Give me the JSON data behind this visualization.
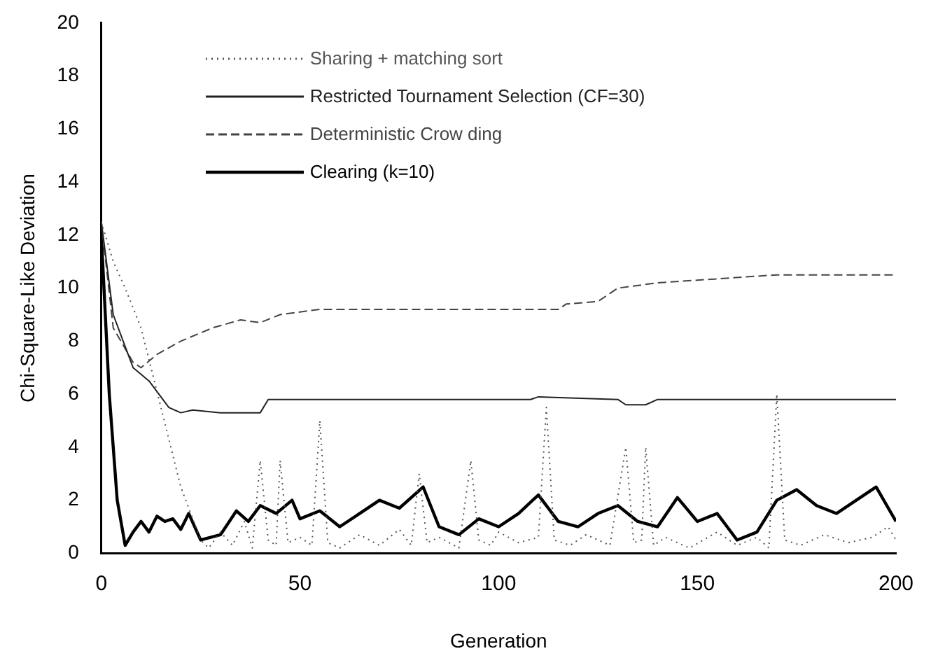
{
  "chart_data": {
    "type": "line",
    "xlabel": "Generation",
    "ylabel": "Chi-Square-Like Deviation",
    "xlim": [
      0,
      200
    ],
    "xticks": [
      0,
      50,
      100,
      150,
      200
    ],
    "ylim": [
      0,
      20
    ],
    "yticks": [
      0,
      2,
      4,
      6,
      8,
      10,
      12,
      14,
      16,
      18,
      20
    ],
    "grid": false,
    "legend": "top left",
    "marker": "none",
    "series": [
      {
        "name": "Sharing + matching sort",
        "color": "#555555",
        "line_style": "dotted",
        "x": [
          0,
          3,
          6,
          10,
          15,
          20,
          25,
          27,
          30,
          33,
          36,
          38,
          40,
          42,
          44,
          45,
          47,
          50,
          53,
          55,
          57,
          60,
          65,
          70,
          75,
          78,
          80,
          82,
          85,
          90,
          93,
          95,
          98,
          100,
          105,
          110,
          112,
          114,
          118,
          122,
          128,
          132,
          134,
          136,
          137,
          139,
          142,
          148,
          155,
          160,
          165,
          168,
          170,
          172,
          176,
          182,
          188,
          194,
          198,
          200
        ],
        "values": [
          12.5,
          11,
          10,
          8.5,
          5.5,
          2.5,
          0.5,
          0.2,
          0.8,
          0.3,
          1.2,
          0.2,
          3.5,
          0.5,
          0.3,
          3.5,
          0.4,
          0.6,
          0.3,
          5,
          0.4,
          0.2,
          0.7,
          0.3,
          0.9,
          0.3,
          3,
          0.4,
          0.6,
          0.2,
          3.5,
          0.5,
          0.3,
          0.8,
          0.4,
          0.6,
          5.5,
          0.5,
          0.3,
          0.7,
          0.3,
          4,
          0.4,
          0.5,
          4,
          0.3,
          0.6,
          0.2,
          0.8,
          0.3,
          0.6,
          0.2,
          6,
          0.5,
          0.3,
          0.7,
          0.4,
          0.6,
          1,
          0.5
        ]
      },
      {
        "name": "Restricted Tournament Selection (CF=30)",
        "color": "#222222",
        "line_style": "solid",
        "x": [
          0,
          3,
          8,
          12,
          17,
          20,
          23,
          30,
          40,
          42,
          100,
          108,
          110,
          130,
          132,
          137,
          140,
          200
        ],
        "values": [
          12.5,
          9,
          7,
          6.5,
          5.5,
          5.3,
          5.4,
          5.3,
          5.3,
          5.8,
          5.8,
          5.8,
          5.9,
          5.8,
          5.6,
          5.6,
          5.8,
          5.8
        ]
      },
      {
        "name": "Deterministic Crow ding",
        "color": "#444444",
        "line_style": "dashed",
        "x": [
          0,
          3,
          8,
          10,
          14,
          20,
          28,
          35,
          40,
          45,
          55,
          115,
          117,
          125,
          127,
          130,
          140,
          150,
          170,
          200
        ],
        "values": [
          12.5,
          8.5,
          7.2,
          7,
          7.5,
          8,
          8.5,
          8.8,
          8.7,
          9,
          9.2,
          9.2,
          9.4,
          9.5,
          9.7,
          10,
          10.2,
          10.3,
          10.5,
          10.5
        ]
      },
      {
        "name": "Clearing (k=10)",
        "color": "#000000",
        "line_style": "solid",
        "x": [
          0,
          2,
          4,
          6,
          8,
          10,
          12,
          14,
          16,
          18,
          20,
          22,
          25,
          30,
          34,
          37,
          40,
          44,
          48,
          50,
          55,
          60,
          65,
          70,
          75,
          81,
          85,
          90,
          95,
          100,
          105,
          110,
          115,
          120,
          125,
          130,
          135,
          140,
          145,
          150,
          155,
          160,
          165,
          170,
          175,
          180,
          185,
          190,
          195,
          200
        ],
        "values": [
          12,
          6,
          2,
          0.3,
          0.8,
          1.2,
          0.8,
          1.4,
          1.2,
          1.3,
          0.9,
          1.5,
          0.5,
          0.7,
          1.6,
          1.2,
          1.8,
          1.5,
          2,
          1.3,
          1.6,
          1,
          1.5,
          2,
          1.7,
          2.5,
          1,
          0.7,
          1.3,
          1,
          1.5,
          2.2,
          1.2,
          1,
          1.5,
          1.8,
          1.2,
          1,
          2.1,
          1.2,
          1.5,
          0.5,
          0.8,
          2,
          2.4,
          1.8,
          1.5,
          2,
          2.5,
          1.2
        ]
      }
    ]
  }
}
